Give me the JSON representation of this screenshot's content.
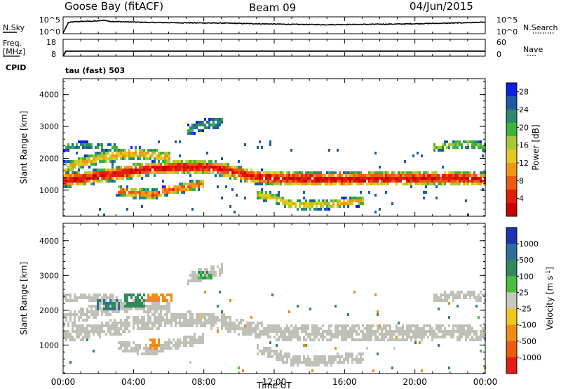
{
  "header": {
    "station": "Goose Bay (fitACF)",
    "beam": "Beam 09",
    "date": "04/Jun/2015"
  },
  "noise_panel": {
    "left_label": "N.Sky",
    "left_ticks": [
      "10^5",
      "10^0"
    ],
    "right_label": "N.Search",
    "right_ticks": [
      "10^5",
      "10^0"
    ]
  },
  "freq_panel": {
    "left_label_1": "Freq.",
    "left_label_2": "[MHz]",
    "left_ticks": [
      "18",
      "8"
    ],
    "right_label": "Nave",
    "right_ticks": [
      "60",
      "0"
    ],
    "cpid_label": "CPID",
    "cpid_value": "tau (fast) 503"
  },
  "chart_data": [
    {
      "type": "line",
      "name": "noise",
      "series": [
        {
          "name": "N.Sky",
          "x_hours": [
            0.0,
            0.3,
            0.6,
            1.0,
            1.5,
            2.0,
            2.3,
            2.6,
            3.0,
            4.0,
            5.0,
            6.0,
            7.0,
            8.0,
            9.0,
            10.0,
            11.0,
            12.0,
            13.0,
            14.0,
            15.0,
            16.0,
            17.0,
            18.0,
            19.0,
            20.0,
            21.0,
            22.0,
            23.0,
            24.0
          ],
          "log10_values": [
            0.0,
            3.4,
            3.6,
            3.75,
            3.8,
            3.9,
            4.2,
            3.8,
            3.7,
            3.55,
            3.4,
            3.35,
            3.3,
            3.25,
            3.2,
            3.1,
            3.0,
            2.9,
            2.8,
            2.75,
            2.7,
            2.75,
            2.8,
            2.85,
            2.9,
            3.0,
            3.1,
            3.2,
            3.35,
            3.5
          ]
        }
      ],
      "y_ticks": [
        "10^0",
        "10^5"
      ]
    },
    {
      "type": "line",
      "name": "frequency",
      "series": [
        {
          "name": "Freq.",
          "x_hours": [
            0.0,
            0.15,
            24.0
          ],
          "values": [
            8.0,
            11.0,
            11.0
          ]
        }
      ],
      "ylim": [
        8,
        18
      ],
      "y_ticks": [
        8,
        18
      ],
      "y2_ticks": [
        0,
        60
      ]
    },
    {
      "type": "heatmap",
      "name": "power",
      "ylabel": "Slant Range [km]",
      "ylim": [
        180,
        4500
      ],
      "y_ticks": [
        1000,
        2000,
        3000,
        4000
      ],
      "colorbar": {
        "label": "Power [dB]",
        "ticks": [
          4,
          8,
          12,
          16,
          20,
          24,
          28
        ],
        "colors": [
          "#0a20e6",
          "#1e5aa6",
          "#2e8a6e",
          "#3cb43c",
          "#a8c832",
          "#e6c81e",
          "#f29614",
          "#ee5a0a",
          "#e01e0a",
          "#cc0000"
        ]
      },
      "bands": [
        {
          "x_hours": [
            0,
            1,
            2,
            3,
            4,
            5,
            6,
            7,
            8,
            9,
            10,
            11,
            12,
            13,
            14,
            15,
            16,
            17,
            18,
            19,
            20,
            21,
            22,
            23,
            24
          ],
          "center_km": [
            1350,
            1400,
            1480,
            1560,
            1650,
            1720,
            1760,
            1770,
            1760,
            1700,
            1560,
            1460,
            1420,
            1400,
            1390,
            1380,
            1380,
            1390,
            1400,
            1400,
            1410,
            1420,
            1420,
            1400,
            1380
          ],
          "halfwidth_km": 230,
          "peak_db": 27
        },
        {
          "x_hours": [
            0,
            1,
            2,
            3,
            4,
            5,
            6
          ],
          "center_km": [
            1750,
            1900,
            2050,
            2150,
            2200,
            2150,
            2050
          ],
          "halfwidth_km": 200,
          "peak_db": 18
        },
        {
          "x_hours": [
            3,
            4,
            5,
            6,
            7,
            8
          ],
          "center_km": [
            1050,
            950,
            900,
            1050,
            1150,
            1250
          ],
          "halfwidth_km": 160,
          "peak_db": 22
        },
        {
          "x_hours": [
            11,
            12,
            13,
            14,
            15,
            16,
            17
          ],
          "center_km": [
            900,
            780,
            600,
            560,
            600,
            650,
            700
          ],
          "halfwidth_km": 160,
          "peak_db": 17
        },
        {
          "x_hours": [
            0,
            1,
            2,
            3
          ],
          "center_km": [
            2400,
            2450,
            2420,
            2350
          ],
          "halfwidth_km": 120,
          "peak_db": 9
        },
        {
          "x_hours": [
            7,
            8,
            9
          ],
          "center_km": [
            2900,
            3100,
            3200
          ],
          "halfwidth_km": 180,
          "peak_db": 8
        },
        {
          "x_hours": [
            21,
            22,
            23,
            24
          ],
          "center_km": [
            2400,
            2450,
            2500,
            2400
          ],
          "halfwidth_km": 140,
          "peak_db": 12
        }
      ]
    },
    {
      "type": "heatmap",
      "name": "velocity",
      "ylabel": "Slant Range [km]",
      "xlabel": "Time UT",
      "ylim": [
        180,
        4500
      ],
      "y_ticks": [
        1000,
        2000,
        3000,
        4000
      ],
      "x_ticks": [
        "00:00",
        "04:00",
        "08:00",
        "12:00",
        "16:00",
        "20:00",
        "00:00"
      ],
      "colorbar": {
        "label": "Velocity [m s",
        "label_sup": "-1",
        "label_end": "]",
        "ticks": [
          1000,
          500,
          100,
          25,
          -25,
          -100,
          -500,
          -1000
        ],
        "colors": [
          "#1e32b4",
          "#2e6e9e",
          "#2e8a5a",
          "#46c03c",
          "#c8c8c0",
          "#f0c814",
          "#f08c14",
          "#ee5a0a",
          "#e01e14"
        ]
      },
      "ground_scatter_color": "#c0c0b8",
      "positive_patches": [
        {
          "x_hours": [
            1.8,
            3.2
          ],
          "km": [
            2050,
            2350
          ],
          "v": 500
        },
        {
          "x_hours": [
            3.4,
            4.6
          ],
          "km": [
            2150,
            2500
          ],
          "v": 300
        },
        {
          "x_hours": [
            7.6,
            8.4
          ],
          "km": [
            2900,
            3200
          ],
          "v": 100
        }
      ],
      "negative_patches": [
        {
          "x_hours": [
            4.6,
            6.2
          ],
          "km": [
            2250,
            2550
          ],
          "v": -300
        },
        {
          "x_hours": [
            4.8,
            5.4
          ],
          "km": [
            900,
            1250
          ],
          "v": -200
        }
      ]
    }
  ],
  "colors": {
    "frame": "#000000",
    "background": "#ffffff"
  }
}
